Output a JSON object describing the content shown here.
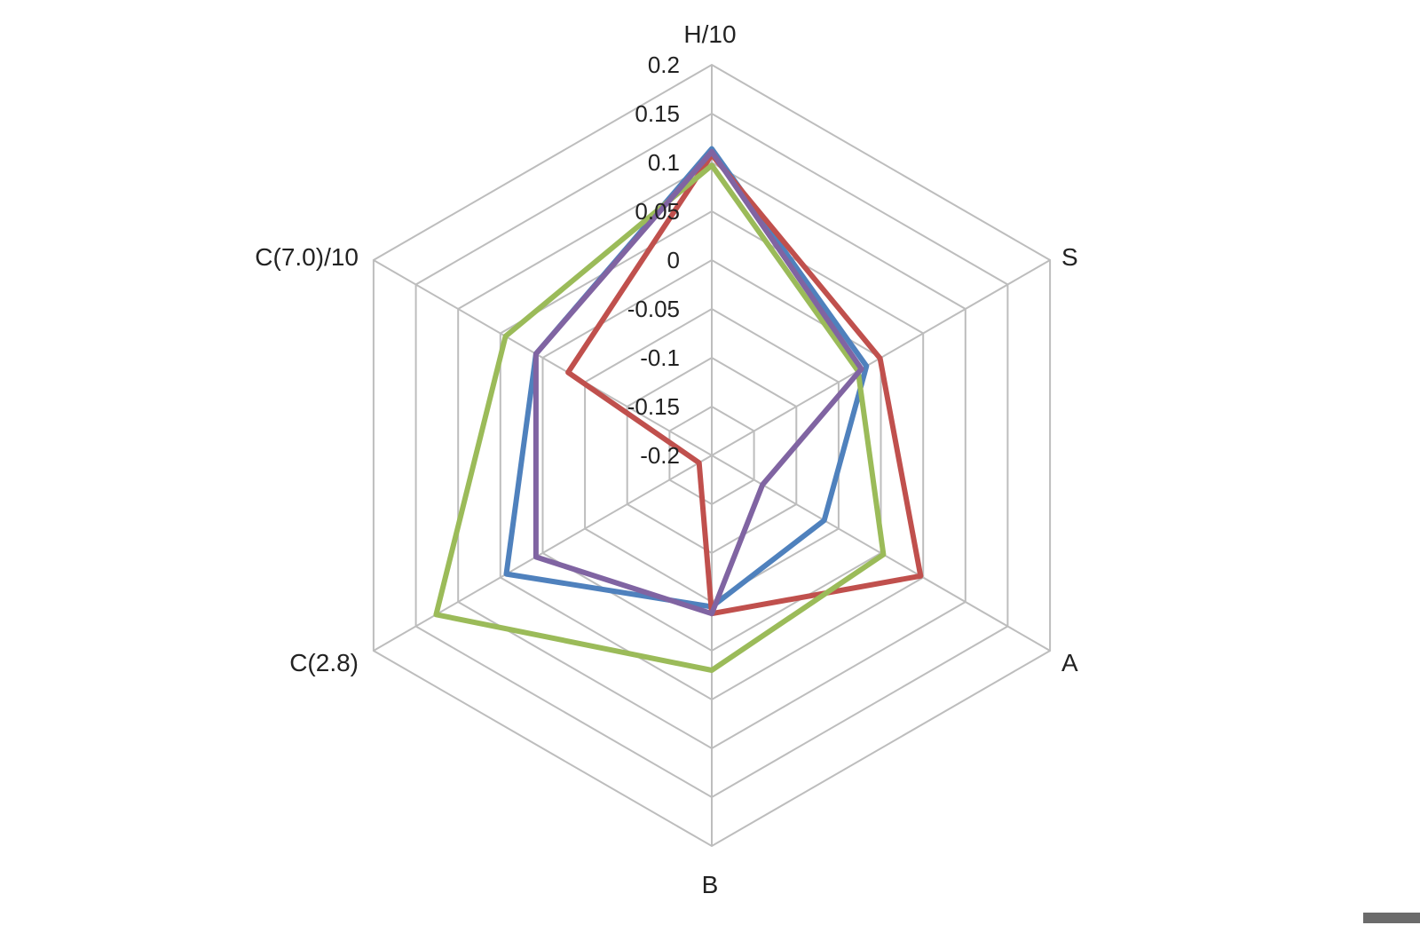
{
  "chart_data": {
    "type": "radar",
    "axes": [
      "H/10",
      "S",
      "A",
      "B",
      "C(2.8)",
      "C(7.0)/10"
    ],
    "rlim": [
      -0.2,
      0.2
    ],
    "ticks": [
      "0.2",
      "0.15",
      "0.1",
      "0.05",
      "0",
      "-0.05",
      "-0.1",
      "-0.15",
      "-0.2"
    ],
    "tick_values": [
      0.2,
      0.15,
      0.1,
      0.05,
      0,
      -0.05,
      -0.1,
      -0.15,
      -0.2
    ],
    "grid": true,
    "legend": "none",
    "series": [
      {
        "color": "#4f81bd",
        "values": [
          0.114,
          -0.017,
          -0.067,
          -0.045,
          0.043,
          0.008
        ]
      },
      {
        "color": "#c0504d",
        "values": [
          0.108,
          -0.001,
          0.047,
          -0.038,
          -0.185,
          -0.03
        ]
      },
      {
        "color": "#9bbb59",
        "values": [
          0.097,
          -0.027,
          0.003,
          0.02,
          0.126,
          0.044
        ]
      },
      {
        "color": "#8064a2",
        "values": [
          0.111,
          -0.023,
          -0.14,
          -0.038,
          0.008,
          0.008
        ]
      }
    ]
  }
}
